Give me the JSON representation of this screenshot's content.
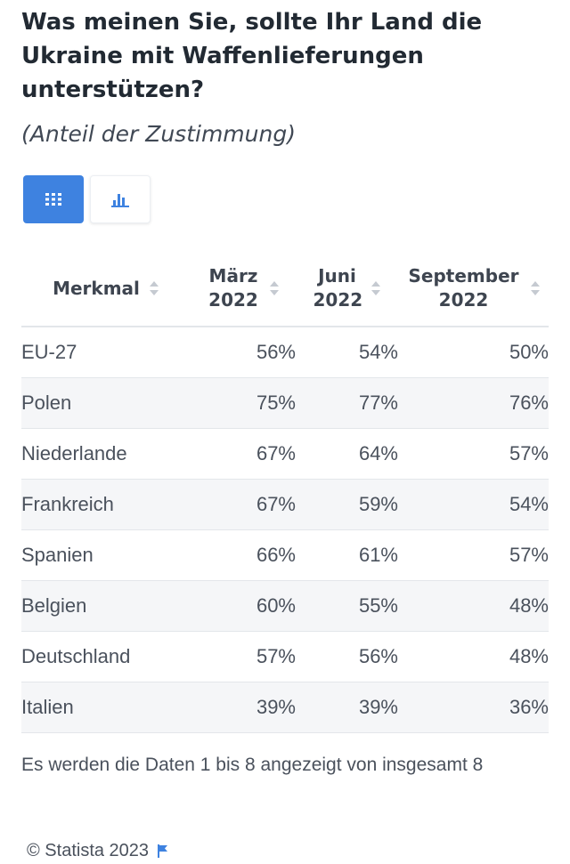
{
  "title": "Was meinen Sie, sollte Ihr Land die Ukraine mit Waffenlieferungen unterstützen?",
  "subtitle": "(Anteil der Zustimmung)",
  "view_toggle": {
    "table_icon": "grid-icon",
    "chart_icon": "bar-chart-icon",
    "active": "table",
    "active_color": "#3e82e0"
  },
  "table": {
    "headers": [
      "Merkmal",
      "März 2022",
      "Juni 2022",
      "September 2022"
    ],
    "rows": [
      {
        "name": "EU-27",
        "values": [
          "56%",
          "54%",
          "50%"
        ]
      },
      {
        "name": "Polen",
        "values": [
          "75%",
          "77%",
          "76%"
        ]
      },
      {
        "name": "Niederlande",
        "values": [
          "67%",
          "64%",
          "57%"
        ]
      },
      {
        "name": "Frankreich",
        "values": [
          "67%",
          "59%",
          "54%"
        ]
      },
      {
        "name": "Spanien",
        "values": [
          "66%",
          "61%",
          "57%"
        ]
      },
      {
        "name": "Belgien",
        "values": [
          "60%",
          "55%",
          "48%"
        ]
      },
      {
        "name": "Deutschland",
        "values": [
          "57%",
          "56%",
          "48%"
        ]
      },
      {
        "name": "Italien",
        "values": [
          "39%",
          "39%",
          "36%"
        ]
      }
    ]
  },
  "pagination_text": "Es werden die Daten 1 bis 8 angezeigt von insgesamt 8",
  "copyright": "© Statista 2023",
  "flag_icon": "flag-icon"
}
